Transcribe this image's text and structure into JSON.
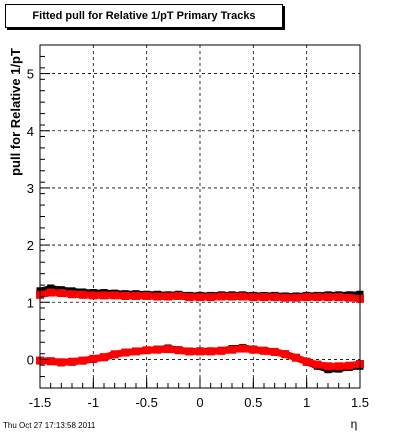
{
  "title": "Fitted pull for Relative 1/pT  Primary Tracks",
  "footer": {
    "timestamp": "Thu Oct 27 17:13:58 2011"
  },
  "chart_data": {
    "type": "scatter",
    "title": "Fitted pull for Relative 1/pT  Primary Tracks",
    "xlabel": "η",
    "ylabel": "pull for Relative 1/pT",
    "xlim": [
      -1.5,
      1.5
    ],
    "ylim": [
      -0.5,
      5.5
    ],
    "x_ticks": [
      "-1.5",
      "-1",
      "-0.5",
      "0",
      "0.5",
      "1",
      "1.5"
    ],
    "y_ticks": [
      "0",
      "1",
      "2",
      "3",
      "4",
      "5"
    ],
    "grid": true,
    "series": [
      {
        "color": "#000000",
        "role": "sigma",
        "x": [
          -1.5,
          -1.4,
          -1.3,
          -1.2,
          -1.1,
          -1.0,
          -0.9,
          -0.8,
          -0.7,
          -0.6,
          -0.5,
          -0.4,
          -0.3,
          -0.2,
          -0.1,
          0.0,
          0.1,
          0.2,
          0.3,
          0.4,
          0.5,
          0.6,
          0.7,
          0.8,
          0.9,
          1.0,
          1.1,
          1.2,
          1.3,
          1.4,
          1.5
        ],
        "y": [
          1.2,
          1.25,
          1.22,
          1.2,
          1.18,
          1.17,
          1.17,
          1.16,
          1.15,
          1.15,
          1.14,
          1.14,
          1.13,
          1.14,
          1.12,
          1.12,
          1.12,
          1.13,
          1.13,
          1.13,
          1.12,
          1.12,
          1.12,
          1.11,
          1.11,
          1.12,
          1.12,
          1.13,
          1.13,
          1.13,
          1.14
        ]
      },
      {
        "color": "#ff0000",
        "role": "sigma",
        "x": [
          -1.5,
          -1.4,
          -1.3,
          -1.2,
          -1.1,
          -1.0,
          -0.9,
          -0.8,
          -0.7,
          -0.6,
          -0.5,
          -0.4,
          -0.3,
          -0.2,
          -0.1,
          0.0,
          0.1,
          0.2,
          0.3,
          0.4,
          0.5,
          0.6,
          0.7,
          0.8,
          0.9,
          1.0,
          1.1,
          1.2,
          1.3,
          1.4,
          1.5
        ],
        "y": [
          1.13,
          1.17,
          1.16,
          1.14,
          1.13,
          1.12,
          1.12,
          1.12,
          1.11,
          1.11,
          1.11,
          1.1,
          1.1,
          1.11,
          1.09,
          1.09,
          1.09,
          1.1,
          1.1,
          1.1,
          1.09,
          1.09,
          1.09,
          1.08,
          1.08,
          1.09,
          1.09,
          1.09,
          1.09,
          1.08,
          1.06
        ]
      },
      {
        "color": "#000000",
        "role": "mean",
        "x": [
          -1.5,
          -1.4,
          -1.3,
          -1.2,
          -1.1,
          -1.0,
          -0.9,
          -0.8,
          -0.7,
          -0.6,
          -0.5,
          -0.4,
          -0.3,
          -0.2,
          -0.1,
          0.0,
          0.1,
          0.2,
          0.3,
          0.4,
          0.5,
          0.6,
          0.7,
          0.8,
          0.9,
          1.0,
          1.1,
          1.2,
          1.3,
          1.4,
          1.5
        ],
        "y": [
          -0.02,
          -0.04,
          -0.06,
          -0.05,
          -0.03,
          0.0,
          0.03,
          0.08,
          0.12,
          0.14,
          0.16,
          0.18,
          0.2,
          0.17,
          0.14,
          0.15,
          0.15,
          0.16,
          0.19,
          0.21,
          0.18,
          0.16,
          0.14,
          0.1,
          0.03,
          -0.05,
          -0.12,
          -0.18,
          -0.17,
          -0.14,
          -0.12
        ]
      },
      {
        "color": "#ff0000",
        "role": "mean",
        "x": [
          -1.5,
          -1.4,
          -1.3,
          -1.2,
          -1.1,
          -1.0,
          -0.9,
          -0.8,
          -0.7,
          -0.6,
          -0.5,
          -0.4,
          -0.3,
          -0.2,
          -0.1,
          0.0,
          0.1,
          0.2,
          0.3,
          0.4,
          0.5,
          0.6,
          0.7,
          0.8,
          0.9,
          1.0,
          1.1,
          1.2,
          1.3,
          1.4,
          1.5
        ],
        "y": [
          -0.02,
          -0.03,
          -0.05,
          -0.04,
          -0.02,
          0.01,
          0.04,
          0.09,
          0.12,
          0.14,
          0.16,
          0.17,
          0.18,
          0.16,
          0.14,
          0.14,
          0.14,
          0.15,
          0.17,
          0.19,
          0.17,
          0.15,
          0.13,
          0.09,
          0.03,
          -0.04,
          -0.09,
          -0.12,
          -0.12,
          -0.11,
          -0.08
        ]
      }
    ]
  }
}
